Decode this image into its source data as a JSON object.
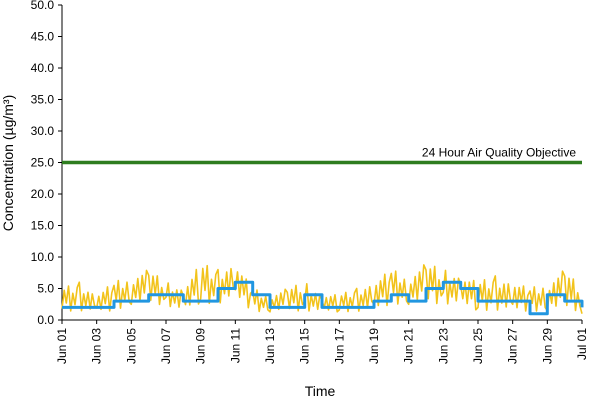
{
  "chart_data": {
    "type": "line",
    "xlabel": "Time",
    "ylabel": "Concentration (µg/m³)",
    "ylim": [
      0,
      50
    ],
    "y_ticks": [
      "0.0",
      "5.0",
      "10.0",
      "15.0",
      "20.0",
      "25.0",
      "30.0",
      "35.0",
      "40.0",
      "45.0",
      "50.0"
    ],
    "x_range": [
      "2023-06-01",
      "2023-07-01"
    ],
    "x_ticks": [
      "Jun 01",
      "Jun 03",
      "Jun 05",
      "Jun 07",
      "Jun 09",
      "Jun 11",
      "Jun 13",
      "Jun 15",
      "Jun 17",
      "Jun 19",
      "Jun 21",
      "Jun 23",
      "Jun 25",
      "Jun 27",
      "Jun 29",
      "Jul 01"
    ],
    "grid": false,
    "legend": "none",
    "reference_line": {
      "label": "24 Hour Air Quality Objective",
      "value": 25,
      "color": "#2e7d1f"
    },
    "series": [
      {
        "kind": "hourly",
        "color": "#f2c31b",
        "x": [
          "Jun 01",
          "Jun 02",
          "Jun 03",
          "Jun 04",
          "Jun 05",
          "Jun 06",
          "Jun 07",
          "Jun 08",
          "Jun 09",
          "Jun 10",
          "Jun 11",
          "Jun 12",
          "Jun 13",
          "Jun 14",
          "Jun 15",
          "Jun 16",
          "Jun 17",
          "Jun 18",
          "Jun 19",
          "Jun 20",
          "Jun 21",
          "Jun 22",
          "Jun 23",
          "Jun 24",
          "Jun 25",
          "Jun 26",
          "Jun 27",
          "Jun 28",
          "Jun 29",
          "Jun 30",
          "Jul 01"
        ],
        "high": [
          5.0,
          6.0,
          4.0,
          6.0,
          7.0,
          8.0,
          6.0,
          5.0,
          9.0,
          8.0,
          9.0,
          5.0,
          4.0,
          5.0,
          6.0,
          4.0,
          4.0,
          5.0,
          6.0,
          8.0,
          7.0,
          9.0,
          8.0,
          7.0,
          6.0,
          7.0,
          6.0,
          5.0,
          6.0,
          8.0,
          5.0
        ],
        "low": [
          1.0,
          1.0,
          1.0,
          1.0,
          2.0,
          2.0,
          2.0,
          1.0,
          2.0,
          2.0,
          3.0,
          1.0,
          1.0,
          1.0,
          1.0,
          1.0,
          1.0,
          1.0,
          1.0,
          2.0,
          2.0,
          2.0,
          2.0,
          2.0,
          1.0,
          1.0,
          1.0,
          1.0,
          1.0,
          1.0,
          1.0
        ]
      },
      {
        "kind": "24-hour average",
        "color": "#2196e0",
        "x": [
          "Jun 01",
          "Jun 02",
          "Jun 03",
          "Jun 04",
          "Jun 05",
          "Jun 06",
          "Jun 07",
          "Jun 08",
          "Jun 09",
          "Jun 10",
          "Jun 11",
          "Jun 12",
          "Jun 13",
          "Jun 14",
          "Jun 15",
          "Jun 16",
          "Jun 17",
          "Jun 18",
          "Jun 19",
          "Jun 20",
          "Jun 21",
          "Jun 22",
          "Jun 23",
          "Jun 24",
          "Jun 25",
          "Jun 26",
          "Jun 27",
          "Jun 28",
          "Jun 29",
          "Jun 30",
          "Jul 01"
        ],
        "values": [
          2.0,
          2.0,
          2.0,
          3.0,
          3.0,
          4.0,
          4.0,
          3.0,
          3.0,
          5.0,
          6.0,
          4.0,
          2.0,
          2.0,
          4.0,
          2.0,
          2.0,
          2.0,
          3.0,
          4.0,
          3.0,
          5.0,
          6.0,
          5.0,
          3.0,
          3.0,
          3.0,
          1.0,
          4.0,
          3.0,
          2.0
        ]
      }
    ]
  }
}
